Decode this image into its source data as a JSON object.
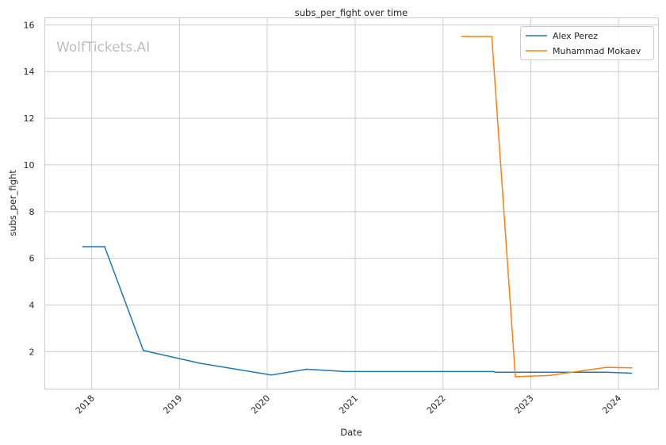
{
  "chart_data": {
    "type": "line",
    "title": "subs_per_fight over time",
    "xlabel": "Date",
    "ylabel": "subs_per_fight",
    "watermark": "WolfTickets.AI",
    "grid": true,
    "legend_position": "top-right",
    "x_ticks": [
      "2018",
      "2019",
      "2020",
      "2021",
      "2022",
      "2023",
      "2024"
    ],
    "y_ticks": [
      2,
      4,
      6,
      8,
      10,
      12,
      14,
      16
    ],
    "xlim": [
      "2017-06-20",
      "2024-06-15"
    ],
    "ylim": [
      0.4,
      16.3
    ],
    "series": [
      {
        "name": "Alex Perez",
        "color": "#1f77b4",
        "points": [
          {
            "x": "2017-11-25",
            "y": 6.5
          },
          {
            "x": "2018-02-24",
            "y": 6.5
          },
          {
            "x": "2018-08-04",
            "y": 2.05
          },
          {
            "x": "2019-03-30",
            "y": 1.5
          },
          {
            "x": "2020-01-18",
            "y": 1.0
          },
          {
            "x": "2020-06-13",
            "y": 1.25
          },
          {
            "x": "2020-11-21",
            "y": 1.15
          },
          {
            "x": "2022-07-30",
            "y": 1.15
          },
          {
            "x": "2022-08-06",
            "y": 1.12
          },
          {
            "x": "2023-11-11",
            "y": 1.12
          },
          {
            "x": "2024-02-24",
            "y": 1.08
          }
        ]
      },
      {
        "name": "Muhammad Mokaev",
        "color": "#ff7f0e",
        "points": [
          {
            "x": "2022-03-19",
            "y": 15.5
          },
          {
            "x": "2022-07-23",
            "y": 15.5
          },
          {
            "x": "2022-10-29",
            "y": 0.93
          },
          {
            "x": "2023-03-18",
            "y": 0.98
          },
          {
            "x": "2023-11-11",
            "y": 1.33
          },
          {
            "x": "2024-02-24",
            "y": 1.31
          }
        ]
      }
    ]
  }
}
